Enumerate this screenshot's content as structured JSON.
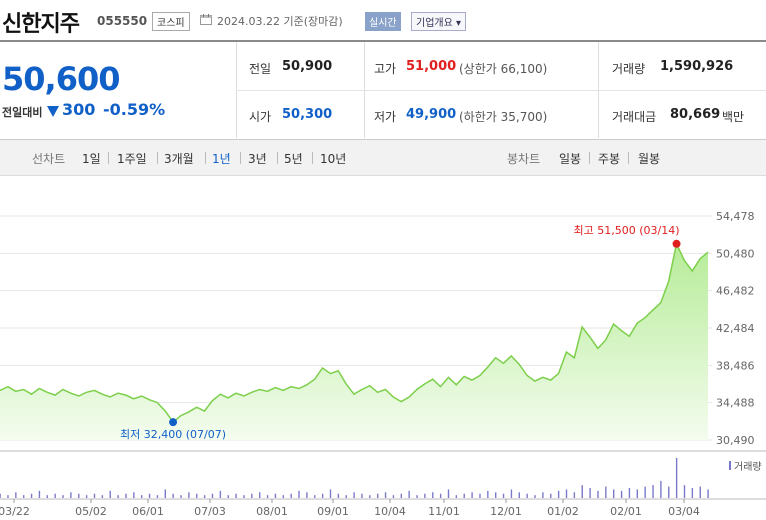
{
  "header": {
    "name": "신한지주",
    "code": "055550",
    "market": "코스피",
    "date_text": "2024.03.22 기준(장마감)",
    "realtime_label": "실시간",
    "company_info_label": "기업개요 ▾"
  },
  "quote": {
    "price": "50,600",
    "change_label": "전일대비",
    "change_value": "300",
    "change_percent": "-0.59%",
    "prev_close_label": "전일",
    "prev_close": "50,900",
    "high_label": "고가",
    "high": "51,000",
    "upper_limit": "(상한가 66,100)",
    "volume_label": "거래량",
    "volume": "1,590,926",
    "open_label": "시가",
    "open": "50,300",
    "low_label": "저가",
    "low": "49,900",
    "lower_limit": "(하한가 35,700)",
    "amount_label": "거래대금",
    "amount": "80,669",
    "amount_unit": "백만"
  },
  "period_bar": {
    "line_chart_label": "선차트",
    "periods": [
      "1일",
      "1주일",
      "3개월",
      "1년",
      "3년",
      "5년",
      "10년"
    ],
    "selected_period": "1년",
    "candle_label": "봉차트",
    "candles": [
      "일봉",
      "주봉",
      "월봉"
    ]
  },
  "colors": {
    "accent": "#1060c8",
    "up": "#e02020",
    "line": "#7ccf4a",
    "fill": "#c8f0b0"
  },
  "chart_data": {
    "type": "area",
    "x_tick_labels": [
      "03/22",
      "05/02",
      "06/01",
      "07/03",
      "08/01",
      "09/01",
      "10/04",
      "11/01",
      "12/01",
      "01/02",
      "02/01",
      "03/04"
    ],
    "y_tick_labels": [
      "54,478",
      "50,480",
      "46,482",
      "42,484",
      "38,486",
      "34,488",
      "30,490"
    ],
    "ylim": [
      30490,
      54478
    ],
    "max_label": "최고 51,500 (03/14)",
    "min_label": "최저 32,400 (07/07)",
    "volume_label": "거래량",
    "price_series": [
      [
        0,
        35800
      ],
      [
        1,
        36200
      ],
      [
        2,
        35700
      ],
      [
        3,
        35900
      ],
      [
        4,
        35400
      ],
      [
        5,
        36000
      ],
      [
        6,
        35600
      ],
      [
        7,
        35300
      ],
      [
        8,
        35900
      ],
      [
        9,
        35500
      ],
      [
        10,
        35200
      ],
      [
        11,
        35600
      ],
      [
        12,
        35800
      ],
      [
        13,
        35400
      ],
      [
        14,
        35100
      ],
      [
        15,
        35500
      ],
      [
        16,
        35300
      ],
      [
        17,
        34900
      ],
      [
        18,
        35200
      ],
      [
        19,
        34800
      ],
      [
        20,
        34500
      ],
      [
        21,
        33600
      ],
      [
        22,
        32400
      ],
      [
        23,
        33100
      ],
      [
        24,
        33500
      ],
      [
        25,
        34000
      ],
      [
        26,
        33600
      ],
      [
        27,
        34700
      ],
      [
        28,
        35400
      ],
      [
        29,
        35000
      ],
      [
        30,
        35500
      ],
      [
        31,
        35200
      ],
      [
        32,
        35600
      ],
      [
        33,
        35900
      ],
      [
        34,
        35700
      ],
      [
        35,
        36100
      ],
      [
        36,
        35800
      ],
      [
        37,
        36200
      ],
      [
        38,
        36000
      ],
      [
        39,
        36400
      ],
      [
        40,
        37000
      ],
      [
        41,
        38200
      ],
      [
        42,
        37600
      ],
      [
        43,
        37900
      ],
      [
        44,
        36500
      ],
      [
        45,
        35400
      ],
      [
        46,
        35900
      ],
      [
        47,
        36300
      ],
      [
        48,
        35600
      ],
      [
        49,
        35900
      ],
      [
        50,
        35100
      ],
      [
        51,
        34600
      ],
      [
        52,
        35100
      ],
      [
        53,
        35900
      ],
      [
        54,
        36500
      ],
      [
        55,
        37000
      ],
      [
        56,
        36200
      ],
      [
        57,
        37200
      ],
      [
        58,
        36400
      ],
      [
        59,
        37300
      ],
      [
        60,
        36900
      ],
      [
        61,
        37400
      ],
      [
        62,
        38300
      ],
      [
        63,
        39300
      ],
      [
        64,
        38700
      ],
      [
        65,
        39500
      ],
      [
        66,
        38600
      ],
      [
        67,
        37400
      ],
      [
        68,
        36800
      ],
      [
        69,
        37200
      ],
      [
        70,
        36900
      ],
      [
        71,
        37600
      ],
      [
        72,
        39900
      ],
      [
        73,
        39300
      ],
      [
        74,
        42600
      ],
      [
        75,
        41500
      ],
      [
        76,
        40300
      ],
      [
        77,
        41200
      ],
      [
        78,
        42900
      ],
      [
        79,
        42200
      ],
      [
        80,
        41600
      ],
      [
        81,
        43000
      ],
      [
        82,
        43600
      ],
      [
        83,
        44400
      ],
      [
        84,
        45200
      ],
      [
        85,
        47500
      ],
      [
        86,
        51500
      ],
      [
        87,
        49700
      ],
      [
        88,
        48600
      ],
      [
        89,
        49900
      ],
      [
        90,
        50600
      ]
    ],
    "volume_series": [
      3,
      2,
      4,
      2,
      3,
      5,
      2,
      3,
      2,
      4,
      3,
      2,
      3,
      2,
      5,
      2,
      3,
      4,
      2,
      3,
      2,
      6,
      3,
      2,
      4,
      3,
      2,
      3,
      5,
      2,
      3,
      2,
      3,
      4,
      2,
      3,
      2,
      3,
      5,
      4,
      2,
      3,
      6,
      3,
      2,
      4,
      3,
      2,
      3,
      4,
      2,
      3,
      5,
      2,
      3,
      4,
      3,
      6,
      2,
      3,
      4,
      3,
      5,
      4,
      3,
      6,
      4,
      3,
      2,
      4,
      3,
      5,
      6,
      4,
      9,
      7,
      5,
      8,
      6,
      5,
      7,
      6,
      8,
      9,
      12,
      8,
      28,
      9,
      7,
      8,
      6
    ]
  }
}
